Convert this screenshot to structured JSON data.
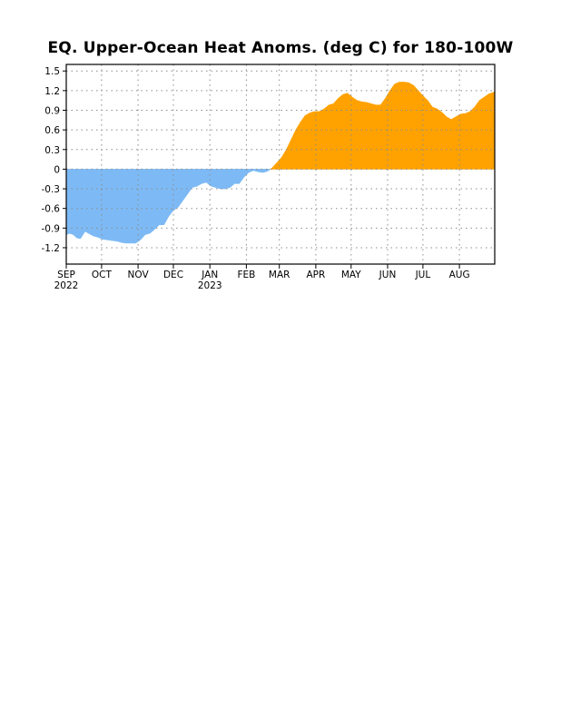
{
  "chart_data": {
    "type": "area",
    "title": "EQ. Upper-Ocean Heat Anoms. (deg C) for 180-100W",
    "xlabel": "",
    "ylabel": "",
    "x_start": "2022-09-01",
    "x_end": "2023-08-31",
    "ylim": [
      -1.45,
      1.6
    ],
    "yticks": [
      "1.5",
      "1.2",
      "0.9",
      "0.6",
      "0.3",
      "0",
      "-0.3",
      "-0.6",
      "-0.9",
      "-1.2"
    ],
    "ytick_values": [
      1.5,
      1.2,
      0.9,
      0.6,
      0.3,
      0,
      -0.3,
      -0.6,
      -0.9,
      -1.2
    ],
    "x_ticks": [
      {
        "date": "2022-09-01",
        "label": "SEP",
        "sublabel": "2022"
      },
      {
        "date": "2022-10-01",
        "label": "OCT",
        "sublabel": ""
      },
      {
        "date": "2022-11-01",
        "label": "NOV",
        "sublabel": ""
      },
      {
        "date": "2022-12-01",
        "label": "DEC",
        "sublabel": ""
      },
      {
        "date": "2023-01-01",
        "label": "JAN",
        "sublabel": "2023"
      },
      {
        "date": "2023-02-01",
        "label": "FEB",
        "sublabel": ""
      },
      {
        "date": "2023-03-01",
        "label": "MAR",
        "sublabel": ""
      },
      {
        "date": "2023-04-01",
        "label": "APR",
        "sublabel": ""
      },
      {
        "date": "2023-05-01",
        "label": "MAY",
        "sublabel": ""
      },
      {
        "date": "2023-06-01",
        "label": "JUN",
        "sublabel": ""
      },
      {
        "date": "2023-07-01",
        "label": "JUL",
        "sublabel": ""
      },
      {
        "date": "2023-08-01",
        "label": "AUG",
        "sublabel": ""
      }
    ],
    "grid": true,
    "positive_color": "#FFA200",
    "negative_color": "#7DBAF5",
    "series": [
      {
        "x": [
          "2022-09-01",
          "2022-09-04",
          "2022-09-07",
          "2022-09-10",
          "2022-09-13",
          "2022-09-17",
          "2022-09-20",
          "2022-09-24",
          "2022-09-28",
          "2022-10-02",
          "2022-10-06",
          "2022-10-10",
          "2022-10-14",
          "2022-10-18",
          "2022-10-22",
          "2022-10-26",
          "2022-10-30",
          "2022-11-03",
          "2022-11-07",
          "2022-11-11",
          "2022-11-15",
          "2022-11-19",
          "2022-11-23",
          "2022-11-27",
          "2022-12-01",
          "2022-12-05",
          "2022-12-09",
          "2022-12-13",
          "2022-12-17",
          "2022-12-21",
          "2022-12-25",
          "2022-12-29",
          "2023-01-02",
          "2023-01-06",
          "2023-01-10",
          "2023-01-14",
          "2023-01-18",
          "2023-01-22",
          "2023-01-26",
          "2023-01-30",
          "2023-02-03",
          "2023-02-07",
          "2023-02-11",
          "2023-02-15",
          "2023-02-19",
          "2023-02-23",
          "2023-02-27",
          "2023-03-03",
          "2023-03-07",
          "2023-03-11",
          "2023-03-15",
          "2023-03-19",
          "2023-03-23",
          "2023-03-27",
          "2023-03-31",
          "2023-04-04",
          "2023-04-08",
          "2023-04-12",
          "2023-04-16",
          "2023-04-20",
          "2023-04-24",
          "2023-04-28",
          "2023-05-02",
          "2023-05-06",
          "2023-05-10",
          "2023-05-14",
          "2023-05-18",
          "2023-05-22",
          "2023-05-26",
          "2023-05-30",
          "2023-06-03",
          "2023-06-07",
          "2023-06-11",
          "2023-06-15",
          "2023-06-19",
          "2023-06-23",
          "2023-06-27",
          "2023-07-01",
          "2023-07-05",
          "2023-07-09",
          "2023-07-13",
          "2023-07-17",
          "2023-07-21",
          "2023-07-25",
          "2023-07-29",
          "2023-08-02",
          "2023-08-06",
          "2023-08-10",
          "2023-08-14",
          "2023-08-18",
          "2023-08-22",
          "2023-08-26",
          "2023-08-31"
        ],
        "values": [
          -1.0,
          -0.98,
          -1.0,
          -1.05,
          -1.06,
          -0.95,
          -0.98,
          -1.02,
          -1.04,
          -1.07,
          -1.08,
          -1.09,
          -1.1,
          -1.12,
          -1.13,
          -1.13,
          -1.13,
          -1.08,
          -1.0,
          -0.98,
          -0.92,
          -0.85,
          -0.85,
          -0.72,
          -0.63,
          -0.58,
          -0.48,
          -0.38,
          -0.28,
          -0.26,
          -0.22,
          -0.2,
          -0.26,
          -0.28,
          -0.3,
          -0.3,
          -0.28,
          -0.22,
          -0.22,
          -0.12,
          -0.05,
          -0.02,
          -0.04,
          -0.05,
          -0.03,
          0.02,
          0.1,
          0.18,
          0.3,
          0.45,
          0.6,
          0.72,
          0.82,
          0.86,
          0.88,
          0.88,
          0.92,
          0.98,
          1.0,
          1.08,
          1.14,
          1.16,
          1.1,
          1.05,
          1.03,
          1.02,
          1.0,
          0.98,
          0.98,
          1.08,
          1.2,
          1.3,
          1.33,
          1.33,
          1.32,
          1.28,
          1.2,
          1.12,
          1.05,
          0.95,
          0.92,
          0.87,
          0.8,
          0.76,
          0.8,
          0.84,
          0.85,
          0.88,
          0.95,
          1.05,
          1.1,
          1.15,
          1.18
        ]
      }
    ]
  }
}
